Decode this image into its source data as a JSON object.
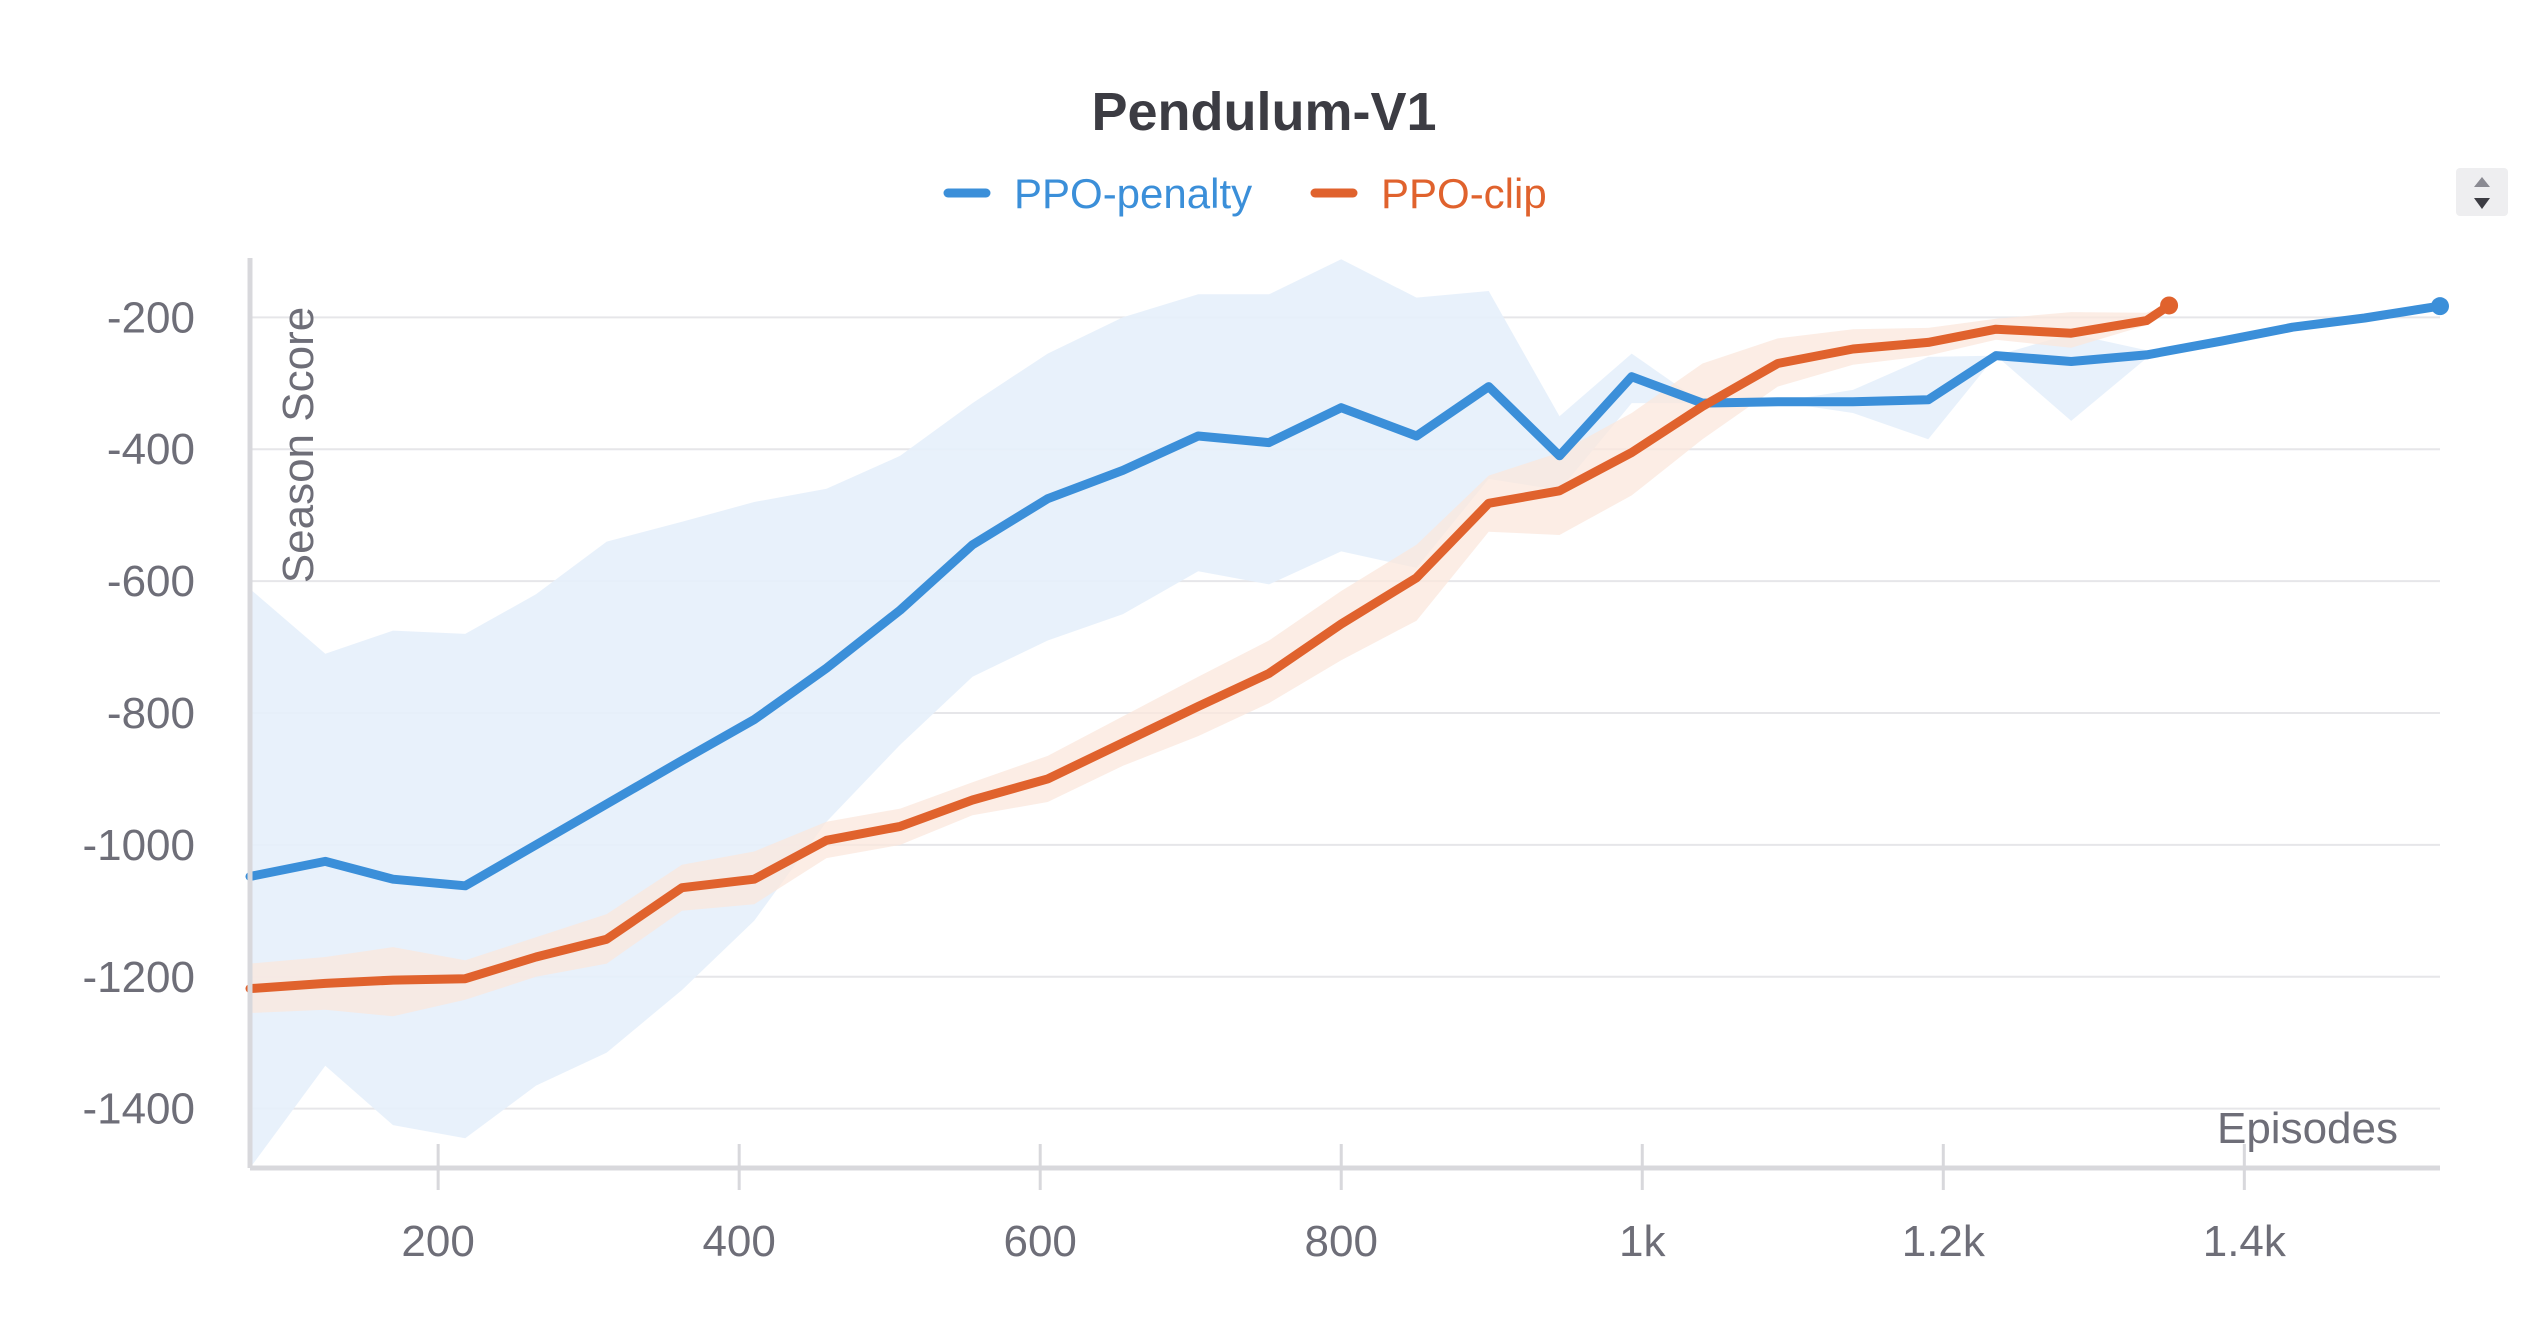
{
  "chart_data": {
    "type": "line",
    "title": "Pendulum-V1",
    "xlabel": "Episodes",
    "ylabel": "Season Score",
    "xlim": [
      75,
      1530
    ],
    "ylim": [
      -1490,
      -110
    ],
    "x_ticks": [
      200,
      400,
      600,
      800,
      1000,
      1200,
      1400
    ],
    "x_tick_labels": [
      "200",
      "400",
      "600",
      "800",
      "1k",
      "1.2k",
      "1.4k"
    ],
    "y_ticks": [
      -200,
      -400,
      -600,
      -800,
      -1000,
      -1200,
      -1400
    ],
    "y_tick_labels": [
      "-200",
      "-400",
      "-600",
      "-800",
      "-1000",
      "-1200",
      "-1400"
    ],
    "grid": true,
    "legend_position": "top-center",
    "series": [
      {
        "name": "PPO-penalty",
        "color": "#3b8fd9",
        "band_color": "#e5f0fb",
        "x": [
          75,
          125,
          170,
          218,
          265,
          312,
          362,
          410,
          458,
          507,
          555,
          605,
          655,
          705,
          752,
          800,
          850,
          898,
          945,
          993,
          1040,
          1090,
          1140,
          1190,
          1235,
          1285,
          1335,
          1385,
          1432,
          1480,
          1530
        ],
        "values": [
          -1048,
          -1025,
          -1052,
          -1062,
          -1000,
          -938,
          -872,
          -810,
          -732,
          -644,
          -545,
          -475,
          -432,
          -380,
          -390,
          -337,
          -380,
          -305,
          -410,
          -290,
          -330,
          -328,
          -328,
          -325,
          -258,
          -267,
          -257,
          -236,
          -215,
          -201,
          -183
        ],
        "upper": [
          -612,
          -710,
          -675,
          -680,
          -620,
          -540,
          -510,
          -480,
          -460,
          -410,
          -330,
          -255,
          -200,
          -165,
          -165,
          -112,
          -170,
          -160,
          -350,
          -255,
          -330,
          -328,
          -310,
          -260,
          -258,
          -225,
          -250,
          -236,
          -215,
          -201,
          -183
        ],
        "lower": [
          -1490,
          -1335,
          -1425,
          -1445,
          -1365,
          -1315,
          -1220,
          -1115,
          -965,
          -848,
          -745,
          -690,
          -650,
          -585,
          -605,
          -555,
          -580,
          -445,
          -462,
          -330,
          -330,
          -328,
          -345,
          -385,
          -258,
          -357,
          -262,
          -236,
          -215,
          -201,
          -183
        ]
      },
      {
        "name": "PPO-clip",
        "color": "#e0622d",
        "band_color": "#fbe7dc",
        "x": [
          75,
          125,
          170,
          218,
          265,
          312,
          362,
          410,
          458,
          507,
          555,
          605,
          655,
          705,
          752,
          800,
          850,
          898,
          945,
          993,
          1040,
          1090,
          1140,
          1190,
          1235,
          1285,
          1335,
          1350
        ],
        "values": [
          -1218,
          -1210,
          -1205,
          -1203,
          -1170,
          -1143,
          -1065,
          -1052,
          -993,
          -972,
          -932,
          -900,
          -845,
          -790,
          -740,
          -665,
          -595,
          -482,
          -463,
          -405,
          -335,
          -270,
          -248,
          -238,
          -218,
          -224,
          -205,
          -182
        ],
        "upper": [
          -1180,
          -1170,
          -1155,
          -1175,
          -1140,
          -1105,
          -1030,
          -1010,
          -965,
          -945,
          -905,
          -865,
          -805,
          -745,
          -690,
          -615,
          -545,
          -440,
          -405,
          -345,
          -270,
          -232,
          -218,
          -216,
          -202,
          -192,
          -193,
          -180
        ],
        "lower": [
          -1255,
          -1250,
          -1260,
          -1235,
          -1200,
          -1180,
          -1100,
          -1090,
          -1020,
          -1000,
          -955,
          -935,
          -880,
          -835,
          -785,
          -720,
          -660,
          -525,
          -530,
          -470,
          -385,
          -305,
          -272,
          -258,
          -234,
          -246,
          -212,
          -184
        ]
      }
    ],
    "controls": {
      "scroll_up_icon": "triangle-up-icon",
      "scroll_down_icon": "triangle-down-icon"
    }
  }
}
